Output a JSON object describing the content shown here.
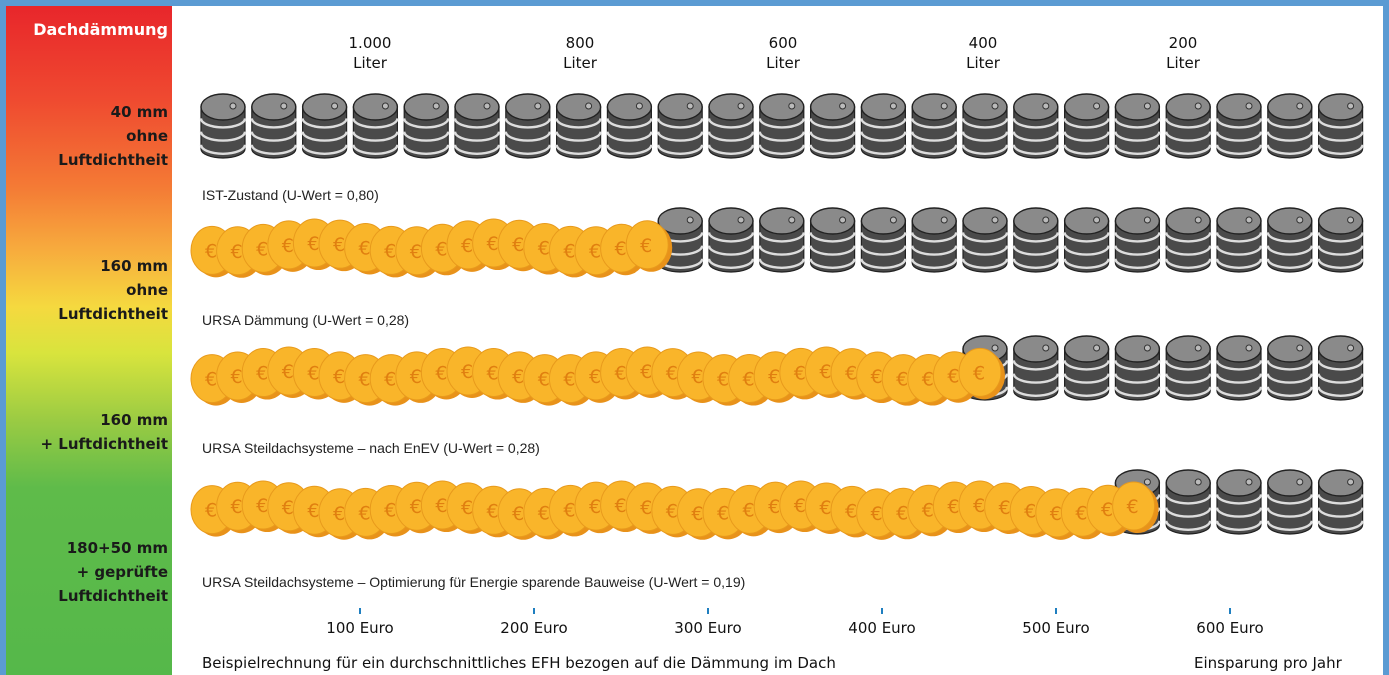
{
  "sidebar": {
    "title": "Dachdämmung",
    "levels": [
      {
        "lines": [
          "40 mm",
          "ohne",
          "Luftdichtheit"
        ]
      },
      {
        "lines": [
          "160 mm",
          "ohne",
          "Luftdichtheit"
        ]
      },
      {
        "lines": [
          "160 mm",
          "+ Luftdichtheit"
        ]
      },
      {
        "lines": [
          "180+50 mm",
          "+ geprüfte",
          "Luftdichtheit"
        ]
      }
    ]
  },
  "footer": {
    "note": "Beispielrechnung für ein durchschnittliches EFH bezogen auf die Dämmung im Dach",
    "right": "Einsparung pro Jahr"
  },
  "chart_data": {
    "type": "bar",
    "top_axis": {
      "unit": "Liter",
      "ticks": [
        "1.000",
        "800",
        "600",
        "400",
        "200"
      ]
    },
    "bottom_axis": {
      "ticks": [
        "100 Euro",
        "200 Euro",
        "300 Euro",
        "400 Euro",
        "500 Euro",
        "600 Euro"
      ],
      "values": [
        100,
        200,
        300,
        400,
        500,
        600
      ]
    },
    "total_barrels": 23,
    "rows": [
      {
        "label": "IST-Zustand  (U-Wert = 0,80)",
        "coins": 0,
        "barrels": 23,
        "savings_euro": 0
      },
      {
        "label": "URSA Dämmung  (U-Wert = 0,28)",
        "coins": 18,
        "barrels": 14,
        "savings_euro": 270
      },
      {
        "label": "URSA Steildachsysteme – nach EnEV  (U-Wert = 0,28)",
        "coins": 31,
        "barrels": 8,
        "savings_euro": 445
      },
      {
        "label": "URSA Steildachsysteme – Optimierung für Energie sparende Bauweise  (U-Wert = 0,19)",
        "coins": 37,
        "barrels": 5,
        "savings_euro": 545
      }
    ],
    "colors": {
      "barrel": "#4a4a4a",
      "barrel_top": "#8a8a8a",
      "coin": "#f9b52a",
      "coin_rim": "#e8921a"
    }
  }
}
